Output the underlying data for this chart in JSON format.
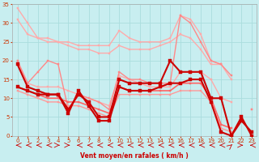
{
  "xlabel": "Vent moyen/en rafales ( km/h )",
  "background_color": "#c8eef0",
  "grid_color": "#aadddd",
  "xlim": [
    -0.5,
    23.5
  ],
  "ylim": [
    0,
    35
  ],
  "yticks": [
    0,
    5,
    10,
    15,
    20,
    25,
    30,
    35
  ],
  "xticks": [
    0,
    1,
    2,
    3,
    4,
    5,
    6,
    7,
    8,
    9,
    10,
    11,
    12,
    13,
    14,
    15,
    16,
    17,
    18,
    19,
    20,
    21,
    22,
    23
  ],
  "series": [
    {
      "x": [
        0,
        1,
        2,
        3,
        4,
        5,
        6,
        7,
        8,
        9,
        10,
        11,
        12,
        13,
        14,
        15,
        16,
        17,
        18,
        19,
        20
      ],
      "y": [
        34,
        30,
        26,
        26,
        25,
        25,
        24,
        24,
        24,
        24,
        28,
        26,
        25,
        25,
        25,
        26,
        32,
        31,
        27,
        20,
        19
      ],
      "color": "#ffaaaa",
      "linewidth": 1.0,
      "marker": "s",
      "markersize": 2,
      "zorder": 2
    },
    {
      "x": [
        0,
        1,
        2,
        3,
        4,
        5,
        6,
        7,
        8,
        9,
        10,
        11,
        12,
        13,
        14,
        15,
        16,
        17,
        18,
        19,
        20,
        21,
        22,
        23
      ],
      "y": [
        31,
        27,
        26,
        25,
        25,
        24,
        23,
        23,
        22,
        22,
        24,
        23,
        23,
        23,
        24,
        25,
        27,
        26,
        23,
        19,
        19,
        15,
        null,
        7
      ],
      "color": "#ffaaaa",
      "linewidth": 1.0,
      "marker": "s",
      "markersize": 2,
      "zorder": 2
    },
    {
      "x": [
        0,
        1,
        2,
        3,
        4,
        5,
        6,
        7,
        8,
        9,
        10,
        11,
        12,
        13,
        14,
        15,
        16,
        17,
        18,
        19,
        20,
        21,
        22,
        23
      ],
      "y": [
        20,
        14,
        17,
        20,
        19,
        7,
        11,
        10,
        9,
        7,
        17,
        15,
        15,
        14,
        14,
        14,
        32,
        30,
        25,
        20,
        19,
        16,
        null,
        7
      ],
      "color": "#ff8888",
      "linewidth": 1.0,
      "marker": "s",
      "markersize": 2,
      "zorder": 3
    },
    {
      "x": [
        0,
        1,
        2,
        3,
        4,
        5,
        6,
        7,
        8,
        9,
        10,
        11,
        12,
        13,
        14,
        15,
        16,
        17,
        18,
        19,
        20,
        21,
        22,
        23
      ],
      "y": [
        20,
        14,
        13,
        13,
        13,
        12,
        11,
        10,
        9,
        8,
        16,
        15,
        14,
        13,
        13,
        13,
        17,
        17,
        17,
        15,
        10,
        9,
        null,
        null
      ],
      "color": "#ffaaaa",
      "linewidth": 1.0,
      "marker": "s",
      "markersize": 2,
      "zorder": 2
    },
    {
      "x": [
        0,
        1,
        2,
        3,
        4,
        5,
        6,
        7,
        8,
        9,
        10,
        11,
        12,
        13,
        14,
        15,
        16,
        17,
        18,
        19,
        20,
        21,
        22,
        23
      ],
      "y": [
        19,
        13,
        12,
        11,
        11,
        7,
        11,
        9,
        5,
        5,
        15,
        14,
        14,
        14,
        14,
        20,
        17,
        17,
        17,
        10,
        10,
        0,
        4,
        1
      ],
      "color": "#cc0000",
      "linewidth": 1.5,
      "marker": "s",
      "markersize": 2.5,
      "zorder": 5
    },
    {
      "x": [
        0,
        1,
        2,
        3,
        4,
        5,
        6,
        7,
        8,
        9,
        10,
        11,
        12,
        13,
        14,
        15,
        16,
        17,
        18,
        19,
        20,
        21,
        22,
        23
      ],
      "y": [
        13,
        12,
        11,
        11,
        11,
        6,
        12,
        8,
        4,
        4,
        13,
        12,
        12,
        12,
        13,
        14,
        14,
        15,
        15,
        9,
        1,
        0,
        5,
        0
      ],
      "color": "#cc0000",
      "linewidth": 1.5,
      "marker": "s",
      "markersize": 2.5,
      "zorder": 5
    },
    {
      "x": [
        0,
        1,
        2,
        3,
        4,
        5,
        6,
        7,
        8,
        9,
        10,
        11,
        12,
        13,
        14,
        15,
        16,
        17,
        18,
        19,
        20,
        21,
        22,
        23
      ],
      "y": [
        13,
        12,
        11,
        10,
        10,
        9,
        9,
        8,
        7,
        6,
        13,
        12,
        12,
        12,
        12,
        12,
        14,
        14,
        14,
        10,
        3,
        2,
        null,
        null
      ],
      "color": "#ff6666",
      "linewidth": 1.2,
      "marker": "s",
      "markersize": 2,
      "zorder": 4
    },
    {
      "x": [
        0,
        1,
        2,
        3,
        4,
        5,
        6,
        7,
        8,
        9,
        10,
        11,
        12,
        13,
        14,
        15,
        16,
        17,
        18,
        19,
        20,
        21,
        22,
        23
      ],
      "y": [
        12,
        11,
        10,
        9,
        9,
        8,
        8,
        7,
        6,
        5,
        11,
        11,
        11,
        11,
        11,
        11,
        12,
        12,
        12,
        9,
        2,
        1,
        null,
        null
      ],
      "color": "#ff9999",
      "linewidth": 1.0,
      "marker": "s",
      "markersize": 2,
      "zorder": 3
    }
  ],
  "arrow_directions": [
    270,
    270,
    270,
    270,
    90,
    90,
    270,
    270,
    270,
    270,
    270,
    270,
    270,
    270,
    270,
    270,
    270,
    270,
    270,
    270,
    270,
    45,
    90,
    270
  ],
  "arrow_color": "#cc0000"
}
